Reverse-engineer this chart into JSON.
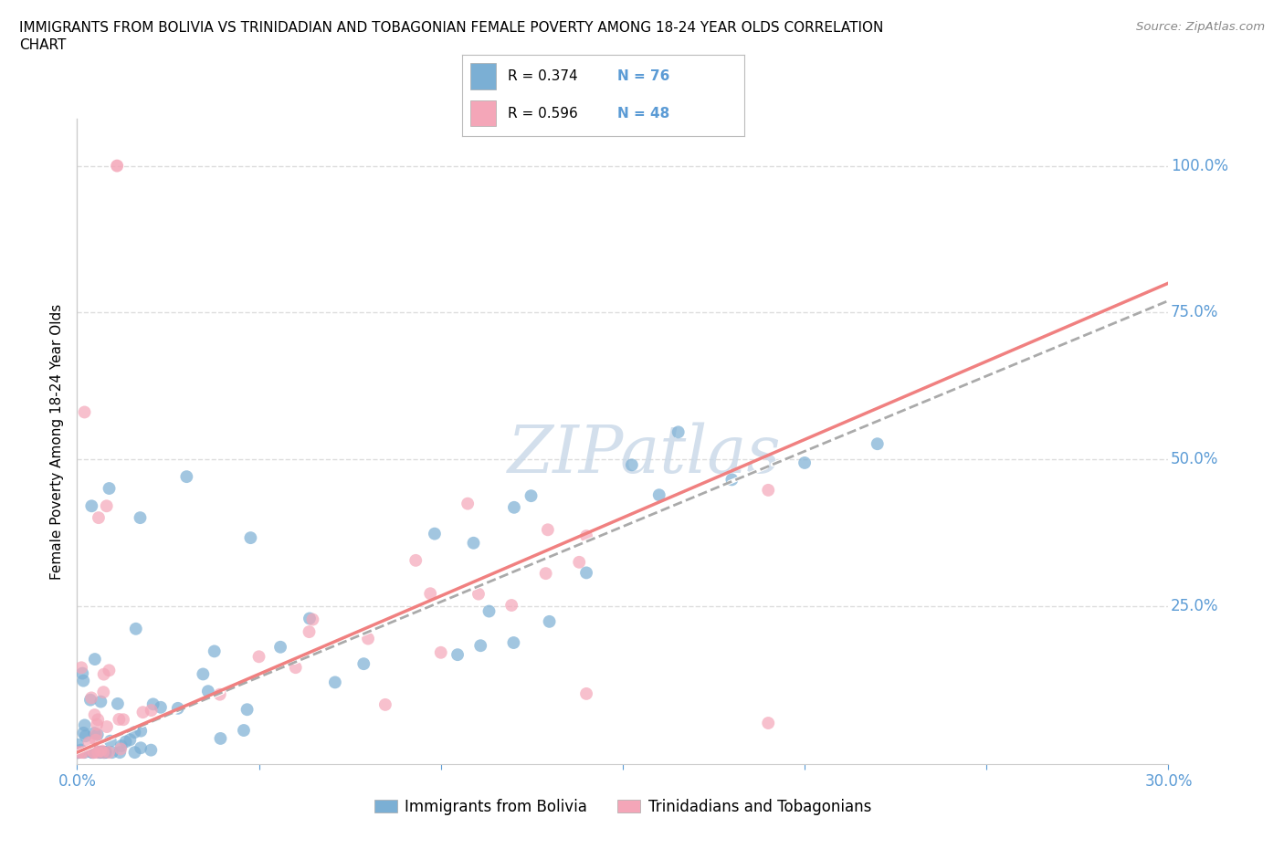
{
  "title_line1": "IMMIGRANTS FROM BOLIVIA VS TRINIDADIAN AND TOBAGONIAN FEMALE POVERTY AMONG 18-24 YEAR OLDS CORRELATION",
  "title_line2": "CHART",
  "source_text": "Source: ZipAtlas.com",
  "ylabel": "Female Poverty Among 18-24 Year Olds",
  "xlim": [
    0.0,
    0.3
  ],
  "ylim": [
    -0.02,
    1.08
  ],
  "xticks": [
    0.0,
    0.05,
    0.1,
    0.15,
    0.2,
    0.25,
    0.3
  ],
  "xticklabels": [
    "0.0%",
    "",
    "",
    "",
    "",
    "",
    "30.0%"
  ],
  "ytick_positions": [
    0.25,
    0.5,
    0.75,
    1.0
  ],
  "ytick_labels": [
    "25.0%",
    "50.0%",
    "75.0%",
    "100.0%"
  ],
  "bolivia_color": "#7BAFD4",
  "trinidad_color": "#F4A6B8",
  "bolivia_R": 0.374,
  "bolivia_N": 76,
  "trinidad_R": 0.596,
  "trinidad_N": 48,
  "watermark": "ZIPatlas",
  "watermark_color": "#C8D8E8",
  "legend_label_bolivia": "Immigrants from Bolivia",
  "legend_label_trinidad": "Trinidadians and Tobagonians",
  "grid_color": "#DDDDDD",
  "axis_label_color": "#5B9BD5",
  "tick_color": "#5B9BD5",
  "trendline_bolivia_color": "#AAAAAA",
  "trendline_trinidad_color": "#F08080",
  "bolivia_trendline": [
    0.0,
    0.0,
    0.3,
    0.77
  ],
  "trinidad_trendline": [
    0.0,
    0.0,
    0.3,
    0.8
  ]
}
